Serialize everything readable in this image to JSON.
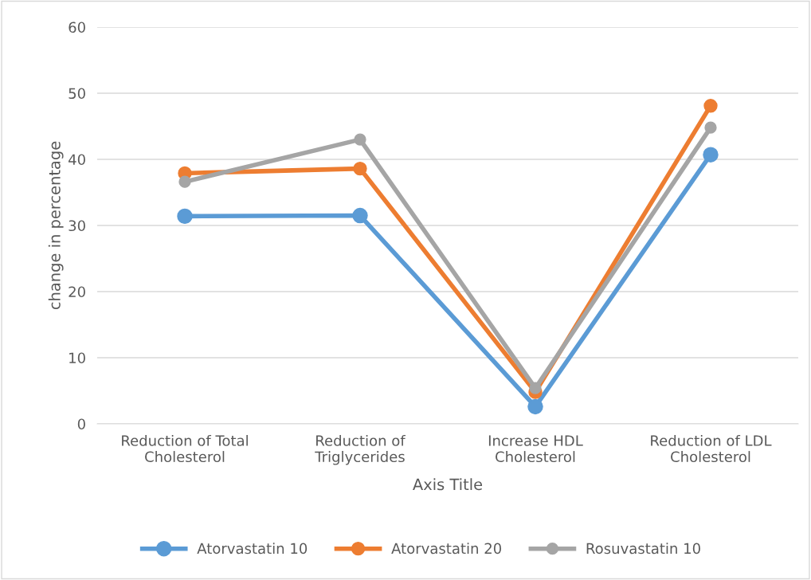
{
  "chart_data": {
    "type": "line",
    "xlabel": "Axis Title",
    "ylabel": "change in percentage",
    "categories": [
      "Reduction of Total\nCholesterol",
      "Reduction of\nTriglycerides",
      "Increase HDL\nCholesterol",
      "Reduction of LDL\nCholesterol"
    ],
    "series": [
      {
        "name": "Atorvastatin 10",
        "color": "#5b9bd5",
        "values": [
          31.4,
          31.5,
          2.6,
          40.7
        ]
      },
      {
        "name": "Atorvastatin 20",
        "color": "#ed7d31",
        "values": [
          37.9,
          38.6,
          4.8,
          48.1
        ]
      },
      {
        "name": "Rosuvastatin 10",
        "color": "#a5a5a5",
        "values": [
          36.6,
          43.0,
          5.4,
          44.8
        ]
      }
    ],
    "ylim": [
      0,
      60
    ],
    "yticks": [
      0,
      10,
      20,
      30,
      40,
      50,
      60
    ],
    "grid": "y",
    "legend": "bottom",
    "marker": "circle",
    "line_style": "solid"
  }
}
